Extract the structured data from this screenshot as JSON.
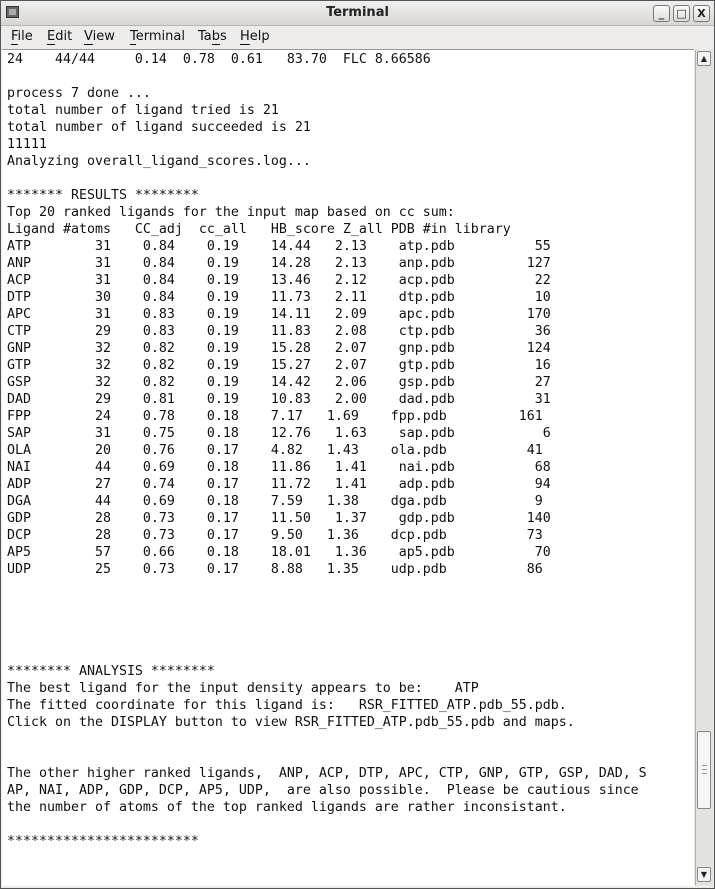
{
  "window": {
    "title": "Terminal",
    "minimize_label": "_",
    "maximize_label": "□",
    "close_label": "X"
  },
  "menu": [
    {
      "label": "File",
      "mnemonic": "F",
      "rest": "ile"
    },
    {
      "label": "Edit",
      "mnemonic": "E",
      "rest": "dit"
    },
    {
      "label": "View",
      "mnemonic": "V",
      "rest": "iew"
    },
    {
      "label": "Terminal",
      "mnemonic": "T",
      "rest": "erminal"
    },
    {
      "label": "Tabs",
      "pre": "Ta",
      "mnemonic": "b",
      "rest": "s"
    },
    {
      "label": "Help",
      "mnemonic": "H",
      "rest": "elp"
    }
  ],
  "terminal": {
    "pre_lines": [
      "24    44/44     0.14  0.78  0.61   83.70  FLC 8.66586",
      "",
      "process 7 done ...",
      "total number of ligand tried is 21",
      "total number of ligand succeeded is 21",
      "11111",
      "Analyzing overall_ligand_scores.log...",
      "",
      "******* RESULTS ********",
      "Top 20 ranked ligands for the input map based on cc sum:",
      "Ligand #atoms   CC_adj  cc_all   HB_score Z_all PDB #in library"
    ],
    "results": [
      [
        "ATP",
        "31",
        "0.84",
        "0.19",
        "14.44",
        "2.13",
        "atp.pdb",
        "55"
      ],
      [
        "ANP",
        "31",
        "0.84",
        "0.19",
        "14.28",
        "2.13",
        "anp.pdb",
        "127"
      ],
      [
        "ACP",
        "31",
        "0.84",
        "0.19",
        "13.46",
        "2.12",
        "acp.pdb",
        "22"
      ],
      [
        "DTP",
        "30",
        "0.84",
        "0.19",
        "11.73",
        "2.11",
        "dtp.pdb",
        "10"
      ],
      [
        "APC",
        "31",
        "0.83",
        "0.19",
        "14.11",
        "2.09",
        "apc.pdb",
        "170"
      ],
      [
        "CTP",
        "29",
        "0.83",
        "0.19",
        "11.83",
        "2.08",
        "ctp.pdb",
        "36"
      ],
      [
        "GNP",
        "32",
        "0.82",
        "0.19",
        "15.28",
        "2.07",
        "gnp.pdb",
        "124"
      ],
      [
        "GTP",
        "32",
        "0.82",
        "0.19",
        "15.27",
        "2.07",
        "gtp.pdb",
        "16"
      ],
      [
        "GSP",
        "32",
        "0.82",
        "0.19",
        "14.42",
        "2.06",
        "gsp.pdb",
        "27"
      ],
      [
        "DAD",
        "29",
        "0.81",
        "0.19",
        "10.83",
        "2.00",
        "dad.pdb",
        "31"
      ],
      [
        "FPP",
        "24",
        "0.78",
        "0.18",
        "7.17",
        "1.69",
        "fpp.pdb",
        "161"
      ],
      [
        "SAP",
        "31",
        "0.75",
        "0.18",
        "12.76",
        "1.63",
        "sap.pdb",
        "6"
      ],
      [
        "OLA",
        "20",
        "0.76",
        "0.17",
        "4.82",
        "1.43",
        "ola.pdb",
        "41"
      ],
      [
        "NAI",
        "44",
        "0.69",
        "0.18",
        "11.86",
        "1.41",
        "nai.pdb",
        "68"
      ],
      [
        "ADP",
        "27",
        "0.74",
        "0.17",
        "11.72",
        "1.41",
        "adp.pdb",
        "94"
      ],
      [
        "DGA",
        "44",
        "0.69",
        "0.18",
        "7.59",
        "1.38",
        "dga.pdb",
        "9"
      ],
      [
        "GDP",
        "28",
        "0.73",
        "0.17",
        "11.50",
        "1.37",
        "gdp.pdb",
        "140"
      ],
      [
        "DCP",
        "28",
        "0.73",
        "0.17",
        "9.50",
        "1.36",
        "dcp.pdb",
        "73"
      ],
      [
        "AP5",
        "57",
        "0.66",
        "0.18",
        "18.01",
        "1.36",
        "ap5.pdb",
        "70"
      ],
      [
        "UDP",
        "25",
        "0.73",
        "0.17",
        "8.88",
        "1.35",
        "udp.pdb",
        "86"
      ]
    ],
    "post_lines": [
      "",
      "",
      "",
      "",
      "",
      "******** ANALYSIS ********",
      "The best ligand for the input density appears to be:    ATP",
      "The fitted coordinate for this ligand is:   RSR_FITTED_ATP.pdb_55.pdb.",
      "Click on the DISPLAY button to view RSR_FITTED_ATP.pdb_55.pdb and maps.",
      "",
      "",
      "The other higher ranked ligands,  ANP, ACP, DTP, APC, CTP, GNP, GTP, GSP, DAD, S",
      "AP, NAI, ADP, GDP, DCP, AP5, UDP,  are also possible.  Please be cautious since",
      "the number of atoms of the top ranked ligands are rather inconsistant.",
      "",
      "************************"
    ]
  },
  "scrollbar": {
    "position_fraction": 0.92,
    "up_icon": "▲",
    "down_icon": "▼"
  }
}
